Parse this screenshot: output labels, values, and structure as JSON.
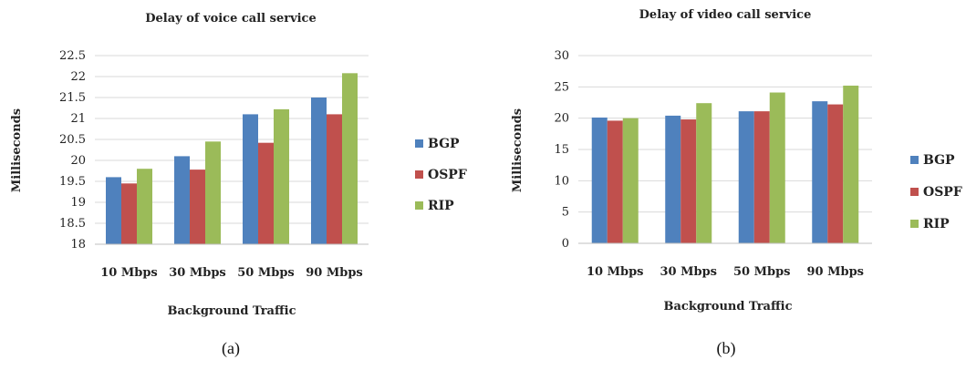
{
  "chart_data": [
    {
      "type": "bar",
      "title": "Delay of voice call service",
      "xlabel": "Background Traffic",
      "ylabel": "Milliseconds",
      "caption": "(a)",
      "categories": [
        "10 Mbps",
        "30 Mbps",
        "50 Mbps",
        "90 Mbps"
      ],
      "ylim": [
        18,
        22.5
      ],
      "yticks": [
        "18",
        "18.5",
        "19",
        "19.5",
        "20",
        "20.5",
        "21",
        "21.5",
        "22",
        "22.5"
      ],
      "ytick_values": [
        18,
        18.5,
        19,
        19.5,
        20,
        20.5,
        21,
        21.5,
        22,
        22.5
      ],
      "grid": true,
      "legend_position": "right",
      "series": [
        {
          "name": "BGP",
          "color": "#4f81bd",
          "values": [
            19.6,
            20.1,
            21.1,
            21.5
          ]
        },
        {
          "name": "OSPF",
          "color": "#c0504d",
          "values": [
            19.45,
            19.78,
            20.42,
            21.1
          ]
        },
        {
          "name": "RIP",
          "color": "#9bbb59",
          "values": [
            19.8,
            20.45,
            21.22,
            22.08
          ]
        }
      ]
    },
    {
      "type": "bar",
      "title": "Delay of video call service",
      "xlabel": "Background Traffic",
      "ylabel": "Milliseconds",
      "caption": "(b)",
      "categories": [
        "10 Mbps",
        "30 Mbps",
        "50 Mbps",
        "90 Mbps"
      ],
      "ylim": [
        0,
        30
      ],
      "yticks": [
        "0",
        "5",
        "10",
        "15",
        "20",
        "25",
        "30"
      ],
      "ytick_values": [
        0,
        5,
        10,
        15,
        20,
        25,
        30
      ],
      "grid": true,
      "legend_position": "right",
      "series": [
        {
          "name": "BGP",
          "color": "#4f81bd",
          "values": [
            20.1,
            20.4,
            21.1,
            22.7
          ]
        },
        {
          "name": "OSPF",
          "color": "#c0504d",
          "values": [
            19.6,
            19.8,
            21.1,
            22.2
          ]
        },
        {
          "name": "RIP",
          "color": "#9bbb59",
          "values": [
            20.0,
            22.4,
            24.1,
            25.2
          ]
        }
      ]
    }
  ]
}
